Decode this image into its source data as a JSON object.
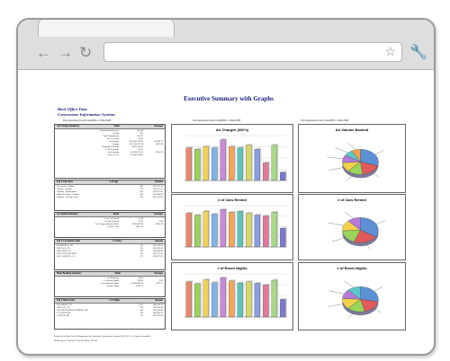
{
  "report": {
    "title": "Executive Summary with Graphs",
    "subtitle1": "Back Office Data",
    "subtitle2": "Cornerstone Information Systems",
    "column_header": "Trip Departures from 01Jan2008 to 31Dec2008",
    "col_header_2": "Trip Departures from 01Jan2008 to 31Dec2008",
    "col_header_3": "Trip Departures from 01Jan2008 to 31Dec2008"
  },
  "tables": {
    "air": {
      "header": [
        "Air Charges Summary",
        "Totals",
        "Averages"
      ],
      "rows": [
        [
          "Transactions/Invoices",
          "58,599",
          ""
        ],
        [
          "Credits",
          "835",
          ""
        ],
        [
          "Total Transactions",
          "60,273",
          ""
        ],
        [
          "Net # of Trips",
          "17,087",
          ""
        ],
        [
          "Air Charges",
          "$26,636,724.95",
          "$1,699.71"
        ],
        [
          "Savings",
          "$17,190,612.78",
          "$979.20"
        ],
        [
          "Negotiated Savings",
          "$325,243.62",
          ""
        ],
        [
          "# of Exceptions",
          "11,297",
          ""
        ],
        [
          "Lost Savings",
          "$2,959,873.21",
          "$335.26"
        ],
        [
          "Service Fees",
          "$1,380,789.85",
          ""
        ]
      ]
    },
    "cities": {
      "header": [
        "Top 5 City Pairs",
        "# of Segs",
        "Amount"
      ],
      "rows": [
        [
          "Cleveland - Orlando",
          "823",
          "$78,237.24"
        ],
        [
          "Atlanta - Orlando",
          "631",
          "$56,937.02"
        ],
        [
          "Orlando - Philadelphia",
          "613",
          "$59,957.62"
        ],
        [
          "Dallas/Ft Worth - Orlando",
          "606",
          "$73,666.62"
        ],
        [
          "Orlando - Chicago Ohare",
          "574",
          "$62,701.88"
        ]
      ]
    },
    "car": {
      "header": [
        "Car Rental Summary",
        "Totals",
        "Averages"
      ],
      "rows": [
        [
          "# of Cars Rented",
          "2,178",
          ""
        ],
        [
          "# of Days Rented",
          "5,670",
          "2.60"
        ],
        [
          "Car Charges (Booked Rate)",
          "$597,088.78",
          "$105.30"
        ],
        [
          "Cost Per Day",
          "$105.30",
          ""
        ]
      ]
    },
    "rentalcities": {
      "header": [
        "Top 5 Car Rental Cities",
        "# of Days",
        "Amount"
      ],
      "rows": [
        [
          "NASHVILLE, TN",
          "556",
          "$25,538.32"
        ],
        [
          "CHICAGO, IL",
          "374",
          "$59,839.49"
        ],
        [
          "ORLANDO, FL",
          "346",
          "$38,600.80"
        ],
        [
          "DALLAS/FT WORTH",
          "275",
          "$35,137.67"
        ],
        [
          "LOS ANGELES, CA",
          "271",
          "$33,937.59"
        ]
      ]
    },
    "hotel": {
      "header": [
        "Hotel Booking Summary",
        "Totals",
        "Averages"
      ],
      "rows": [
        [
          "# of Bookings",
          "4,034",
          ""
        ],
        [
          "# of Room Nights",
          "10,685",
          "2.65"
        ],
        [
          "Costs (Booked Rate)",
          "$1,204,984.14",
          "$112.77"
        ],
        [
          "Cost per Night",
          "$112.77",
          ""
        ]
      ]
    },
    "hotelcities": {
      "header": [
        "Top 5 Hotel Cities",
        "# of Nights",
        "Amount"
      ],
      "rows": [
        [
          "FRANKLIN, TN",
          "1,012",
          "$88,536.74"
        ],
        [
          "CHICAGO, IL",
          "528",
          "$30,206.84"
        ],
        [
          "GRAND RAPIDS/WYOMING, MI",
          "400",
          "$36,664.80"
        ],
        [
          "ST. LOUIS, MO",
          "290",
          "$40,059.45"
        ],
        [
          "CANTON, MI",
          "251",
          "$22,978.06"
        ]
      ]
    }
  },
  "charts": {
    "air_bar_title": "Air Charges (000's)",
    "cars_bar_title": "# of Cars Rented",
    "rooms_bar_title": "# of Room Nights",
    "air_pie_title": "Air Volume Booked",
    "cars_pie_title": "# of Cars Rented",
    "rooms_pie_title": "# of Room Nights"
  },
  "chart_data": [
    {
      "type": "bar",
      "title": "Air Charges (000's)",
      "categories": [
        "",
        "",
        "",
        "",
        "",
        "",
        "",
        "",
        "",
        "",
        "",
        ""
      ],
      "values": [
        2400,
        2300,
        2500,
        2400,
        3000,
        2500,
        2400,
        2600,
        2300,
        1300,
        2600,
        600
      ]
    },
    {
      "type": "bar",
      "title": "# of Cars Rented",
      "categories": [
        "",
        "",
        "",
        "",
        "",
        "",
        "",
        "",
        "",
        "",
        "",
        ""
      ],
      "values": [
        180,
        170,
        190,
        175,
        200,
        185,
        190,
        180,
        170,
        165,
        185,
        100
      ]
    },
    {
      "type": "bar",
      "title": "# of Room Nights",
      "categories": [
        "",
        "",
        "",
        "",
        "",
        "",
        "",
        "",
        "",
        "",
        "",
        ""
      ],
      "values": [
        900,
        850,
        950,
        880,
        1000,
        920,
        870,
        900,
        860,
        820,
        940,
        450
      ]
    },
    {
      "type": "pie",
      "title": "Air Volume Booked",
      "values": [
        30,
        18,
        14,
        12,
        10,
        8,
        8
      ]
    },
    {
      "type": "pie",
      "title": "# of Cars Rented",
      "values": [
        34,
        22,
        18,
        14,
        12
      ]
    },
    {
      "type": "pie",
      "title": "# of Room Nights",
      "values": [
        28,
        18,
        16,
        14,
        12,
        12
      ]
    }
  ],
  "footer": {
    "line1": "Produced by iBank Travel Management & Cornerstone Information Systems 2001-2012 -- All data is unaudited",
    "line2": "ID24  Printed: 17Jan2012  10:43:40 PM by GUEST"
  },
  "colors": {
    "bars": [
      "#e8896a",
      "#9cd05e",
      "#f0d25a",
      "#7fb4e6",
      "#c98ad8",
      "#f2a65a",
      "#5fc4b8",
      "#d8d86a",
      "#8a9ee0",
      "#e07a9a",
      "#a8d88a",
      "#7a7ad0"
    ]
  }
}
